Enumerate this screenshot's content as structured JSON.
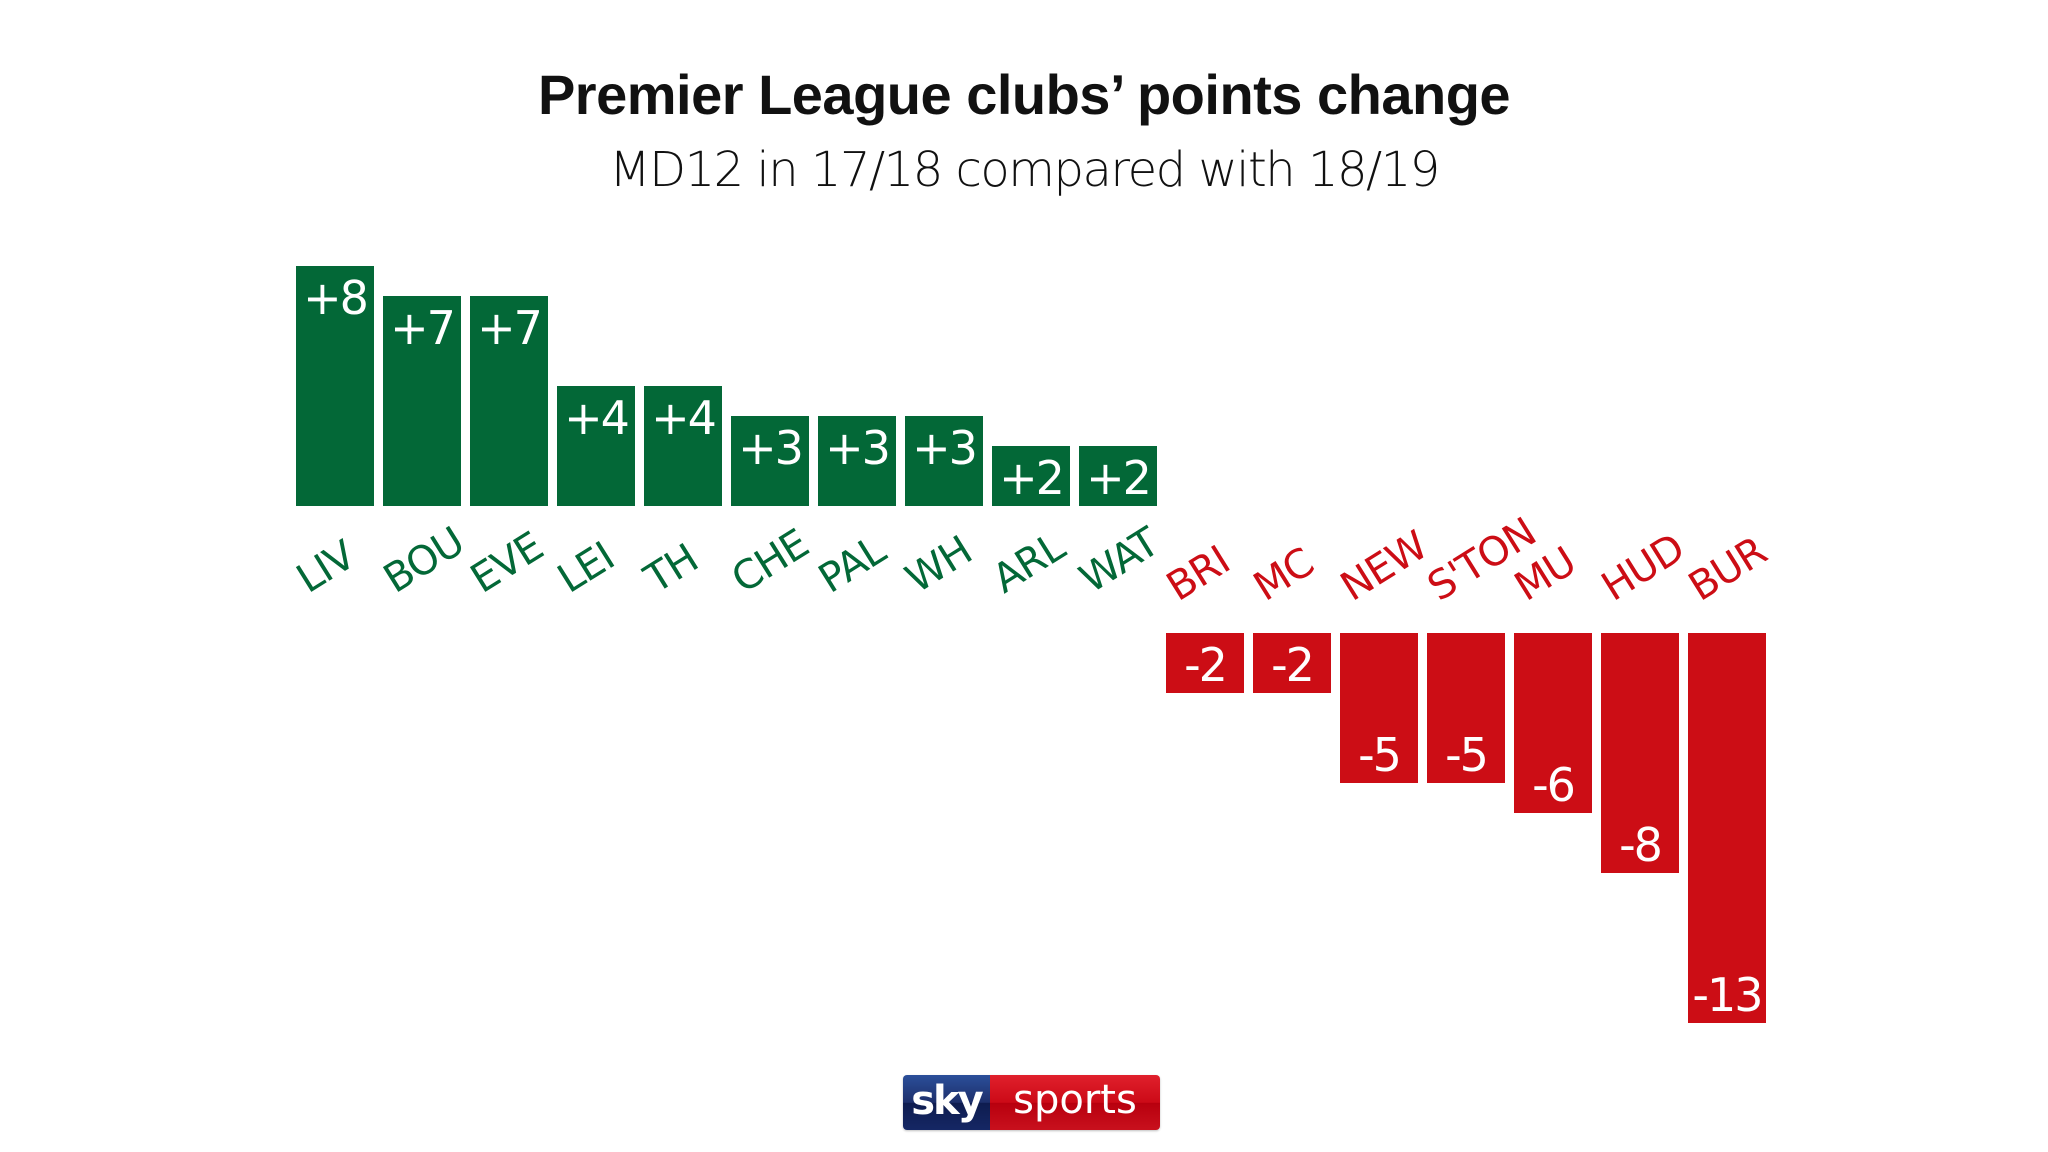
{
  "chart_data": {
    "type": "bar",
    "title": "Premier League clubs’ points change",
    "subtitle": "MD12 in 17/18 compared with 18/19",
    "xlabel": "",
    "ylabel": "",
    "grid": false,
    "legend": "none",
    "ylim": [
      -13,
      8
    ],
    "categories": [
      "LIV",
      "BOU",
      "EVE",
      "LEI",
      "TH",
      "CHE",
      "PAL",
      "WH",
      "ARL",
      "WAT",
      "BRI",
      "MC",
      "NEW",
      "S'TON",
      "MU",
      "HUD",
      "BUR"
    ],
    "values": [
      8,
      7,
      7,
      4,
      4,
      3,
      3,
      3,
      2,
      2,
      -2,
      -2,
      -5,
      -5,
      -6,
      -8,
      -13
    ],
    "value_labels": [
      "+8",
      "+7",
      "+7",
      "+4",
      "+4",
      "+3",
      "+3",
      "+3",
      "+2",
      "+2",
      "-2",
      "-2",
      "-5",
      "-5",
      "-6",
      "-8",
      "-13"
    ],
    "colors": {
      "positive": "#036837",
      "negative": "#cc0d15",
      "label_text": "#ffffff"
    }
  },
  "branding": {
    "logo_part1": "sky",
    "logo_part2": "sports",
    "colors": {
      "sky_bg": "#1d2f6b",
      "sports_bg": "#cc0a17"
    }
  }
}
